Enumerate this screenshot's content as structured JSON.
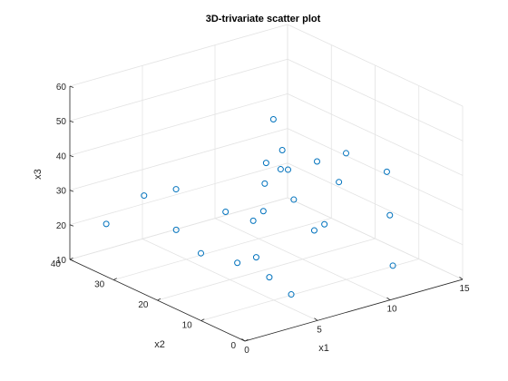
{
  "chart_data": {
    "type": "scatter",
    "title": "3D-trivariate scatter plot",
    "xlabel": "x1",
    "ylabel": "x2",
    "zlabel": "x3",
    "xlim": [
      0,
      15
    ],
    "ylim": [
      0,
      40
    ],
    "zlim": [
      10,
      60
    ],
    "xticks": [
      "0",
      "5",
      "10",
      "15"
    ],
    "yticks": [
      "0",
      "10",
      "20",
      "30",
      "40"
    ],
    "zticks": [
      "10",
      "20",
      "30",
      "40",
      "50",
      "60"
    ],
    "grid": true,
    "marker": "open circle",
    "marker_color": "#0072bd",
    "points": [
      {
        "x": 1,
        "y": 35,
        "z": 22
      },
      {
        "x": 3,
        "y": 33,
        "z": 29
      },
      {
        "x": 2.5,
        "y": 24,
        "z": 25
      },
      {
        "x": 4,
        "y": 29,
        "z": 32
      },
      {
        "x": 3,
        "y": 20,
        "z": 20
      },
      {
        "x": 5,
        "y": 21,
        "z": 29
      },
      {
        "x": 4,
        "y": 15,
        "z": 19
      },
      {
        "x": 5,
        "y": 14,
        "z": 20
      },
      {
        "x": 5,
        "y": 11,
        "z": 16
      },
      {
        "x": 5,
        "y": 6,
        "z": 14
      },
      {
        "x": 6,
        "y": 18,
        "z": 27
      },
      {
        "x": 7,
        "y": 19,
        "z": 28
      },
      {
        "x": 8,
        "y": 22,
        "z": 33
      },
      {
        "x": 9,
        "y": 25,
        "z": 36
      },
      {
        "x": 9,
        "y": 20,
        "z": 37
      },
      {
        "x": 9.5,
        "y": 25,
        "z": 48
      },
      {
        "x": 8,
        "y": 18,
        "z": 45
      },
      {
        "x": 10,
        "y": 22,
        "z": 26
      },
      {
        "x": 10,
        "y": 25,
        "z": 33
      },
      {
        "x": 9,
        "y": 14,
        "z": 23
      },
      {
        "x": 10,
        "y": 15,
        "z": 23
      },
      {
        "x": 11,
        "y": 15,
        "z": 34
      },
      {
        "x": 11,
        "y": 20,
        "z": 37
      },
      {
        "x": 13,
        "y": 20,
        "z": 37
      },
      {
        "x": 13,
        "y": 10,
        "z": 25
      },
      {
        "x": 14,
        "y": 14,
        "z": 34
      },
      {
        "x": 12,
        "y": 6,
        "z": 14
      }
    ]
  }
}
